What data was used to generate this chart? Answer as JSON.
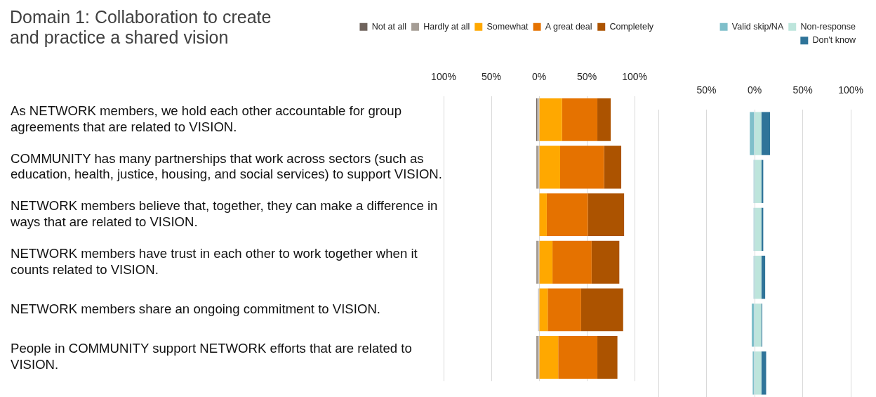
{
  "chart_data": [
    {
      "type": "bar",
      "orientation": "horizontal",
      "stacked": true,
      "title": "Domain 1: Collaboration to create and practice a shared vision",
      "categories": [
        "As NETWORK members, we hold each other accountable for group agreements that are related to VISION.",
        "COMMUNITY has many partnerships that work across sectors (such as education, health, justice, housing, and social services) to support VISION.",
        "NETWORK members believe that, together, they can make a difference in ways that are related to VISION.",
        "NETWORK members have trust in each other to work together when it counts related to VISION.",
        "NETWORK members share an ongoing commitment to VISION.",
        "People in COMMUNITY support NETWORK efforts that are related to VISION."
      ],
      "series": [
        {
          "name": "Hardly at all",
          "color": "#a59d95",
          "values": [
            -2,
            -3,
            0,
            -3,
            -1,
            -3
          ]
        },
        {
          "name": "Not at all",
          "color": "#6f635c",
          "values": [
            -1,
            0,
            0,
            0,
            0,
            0
          ]
        },
        {
          "name": "Somewhat",
          "color": "#ffa800",
          "values": [
            24,
            22,
            8,
            14,
            9,
            20
          ]
        },
        {
          "name": "A great deal",
          "color": "#e57200",
          "values": [
            37,
            46,
            43,
            41,
            35,
            41
          ]
        },
        {
          "name": "Completely",
          "color": "#ac5300",
          "values": [
            14,
            18,
            38,
            29,
            44,
            21
          ]
        }
      ],
      "xlim": [
        -100,
        100
      ],
      "xticks": [
        {
          "value": -100,
          "label": "100%"
        },
        {
          "value": -50,
          "label": "50%"
        },
        {
          "value": 0,
          "label": "0%"
        },
        {
          "value": 50,
          "label": "50%"
        },
        {
          "value": 100,
          "label": "100%"
        }
      ],
      "grid": "x",
      "legend": "top"
    },
    {
      "type": "bar",
      "orientation": "horizontal",
      "stacked": true,
      "categories": [
        null,
        null,
        null,
        null,
        null,
        null
      ],
      "series": [
        {
          "name": "Valid skip/NA",
          "color": "#7fbfca",
          "values": [
            -5,
            -1,
            -1,
            -1,
            -3,
            -2
          ]
        },
        {
          "name": "Non-response",
          "color": "#bde5dc",
          "values": [
            7,
            7,
            7,
            7,
            7,
            7
          ]
        },
        {
          "name": "Don't know",
          "color": "#2f7499",
          "values": [
            9,
            2,
            2,
            4,
            1,
            5
          ]
        }
      ],
      "xlim": [
        -100,
        100
      ],
      "xticks": [
        {
          "value": -100,
          "label": null
        },
        {
          "value": -50,
          "label": "50%"
        },
        {
          "value": 0,
          "label": "0%"
        },
        {
          "value": 50,
          "label": "50%"
        },
        {
          "value": 100,
          "label": "100%"
        }
      ],
      "grid": "x",
      "legend": "top",
      "tick_labels": "x"
    }
  ]
}
